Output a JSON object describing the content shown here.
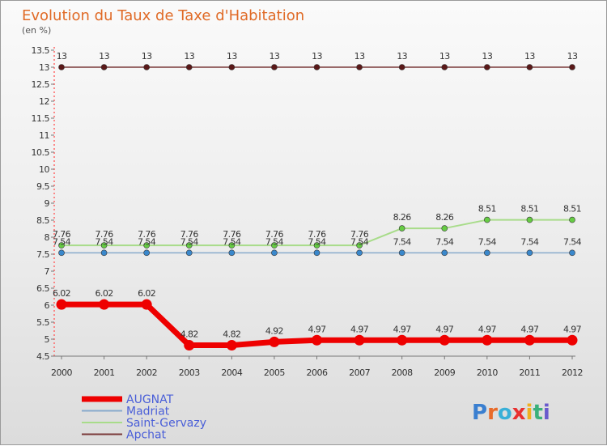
{
  "chart_data": {
    "type": "line",
    "title": "Evolution du Taux de Taxe d'Habitation",
    "subtitle": "(en %)",
    "x": [
      "2000",
      "2001",
      "2002",
      "2003",
      "2004",
      "2005",
      "2006",
      "2007",
      "2008",
      "2009",
      "2010",
      "2011",
      "2012"
    ],
    "ylim": [
      4.5,
      13.5
    ],
    "yticks": [
      4.5,
      5,
      5.5,
      6,
      6.5,
      7,
      7.5,
      8,
      8.5,
      9,
      9.5,
      10,
      10.5,
      11,
      11.5,
      12,
      12.5,
      13,
      13.5
    ],
    "series": [
      {
        "name": "Apchat",
        "color": "#7a3a3a",
        "marker": "#5a1818",
        "width": 1.5,
        "values": [
          13,
          13,
          13,
          13,
          13,
          13,
          13,
          13,
          13,
          13,
          13,
          13,
          13
        ],
        "labels": [
          "13",
          "13",
          "13",
          "13",
          "13",
          "13",
          "13",
          "13",
          "13",
          "13",
          "13",
          "13",
          "13"
        ]
      },
      {
        "name": "Saint-Gervazy",
        "color": "#a8dc8a",
        "marker": "#66cc44",
        "width": 2,
        "values": [
          7.76,
          7.76,
          7.76,
          7.76,
          7.76,
          7.76,
          7.76,
          7.76,
          8.26,
          8.26,
          8.51,
          8.51,
          8.51
        ],
        "labels": [
          "7.76",
          "7.76",
          "7.76",
          "7.76",
          "7.76",
          "7.76",
          "7.76",
          "7.76",
          "8.26",
          "8.26",
          "8.51",
          "8.51",
          "8.51"
        ]
      },
      {
        "name": "Madriat",
        "color": "#88aacc",
        "marker": "#3a88cc",
        "width": 1.5,
        "values": [
          7.54,
          7.54,
          7.54,
          7.54,
          7.54,
          7.54,
          7.54,
          7.54,
          7.54,
          7.54,
          7.54,
          7.54,
          7.54
        ],
        "labels": [
          "7.54",
          "7.54",
          "7.54",
          "7.54",
          "7.54",
          "7.54",
          "7.54",
          "7.54",
          "7.54",
          "7.54",
          "7.54",
          "7.54",
          "7.54"
        ]
      },
      {
        "name": "AUGNAT",
        "color": "#ee0000",
        "marker": "#ee0000",
        "width": 7,
        "values": [
          6.02,
          6.02,
          6.02,
          4.82,
          4.82,
          4.92,
          4.97,
          4.97,
          4.97,
          4.97,
          4.97,
          4.97,
          4.97
        ],
        "labels": [
          "6.02",
          "6.02",
          "6.02",
          "4.82",
          "4.82",
          "4.92",
          "4.97",
          "4.97",
          "4.97",
          "4.97",
          "4.97",
          "4.97",
          "4.97"
        ]
      }
    ],
    "legend": [
      "AUGNAT",
      "Madriat",
      "Saint-Gervazy",
      "Apchat"
    ]
  },
  "logo": {
    "text": "Proxiti"
  }
}
